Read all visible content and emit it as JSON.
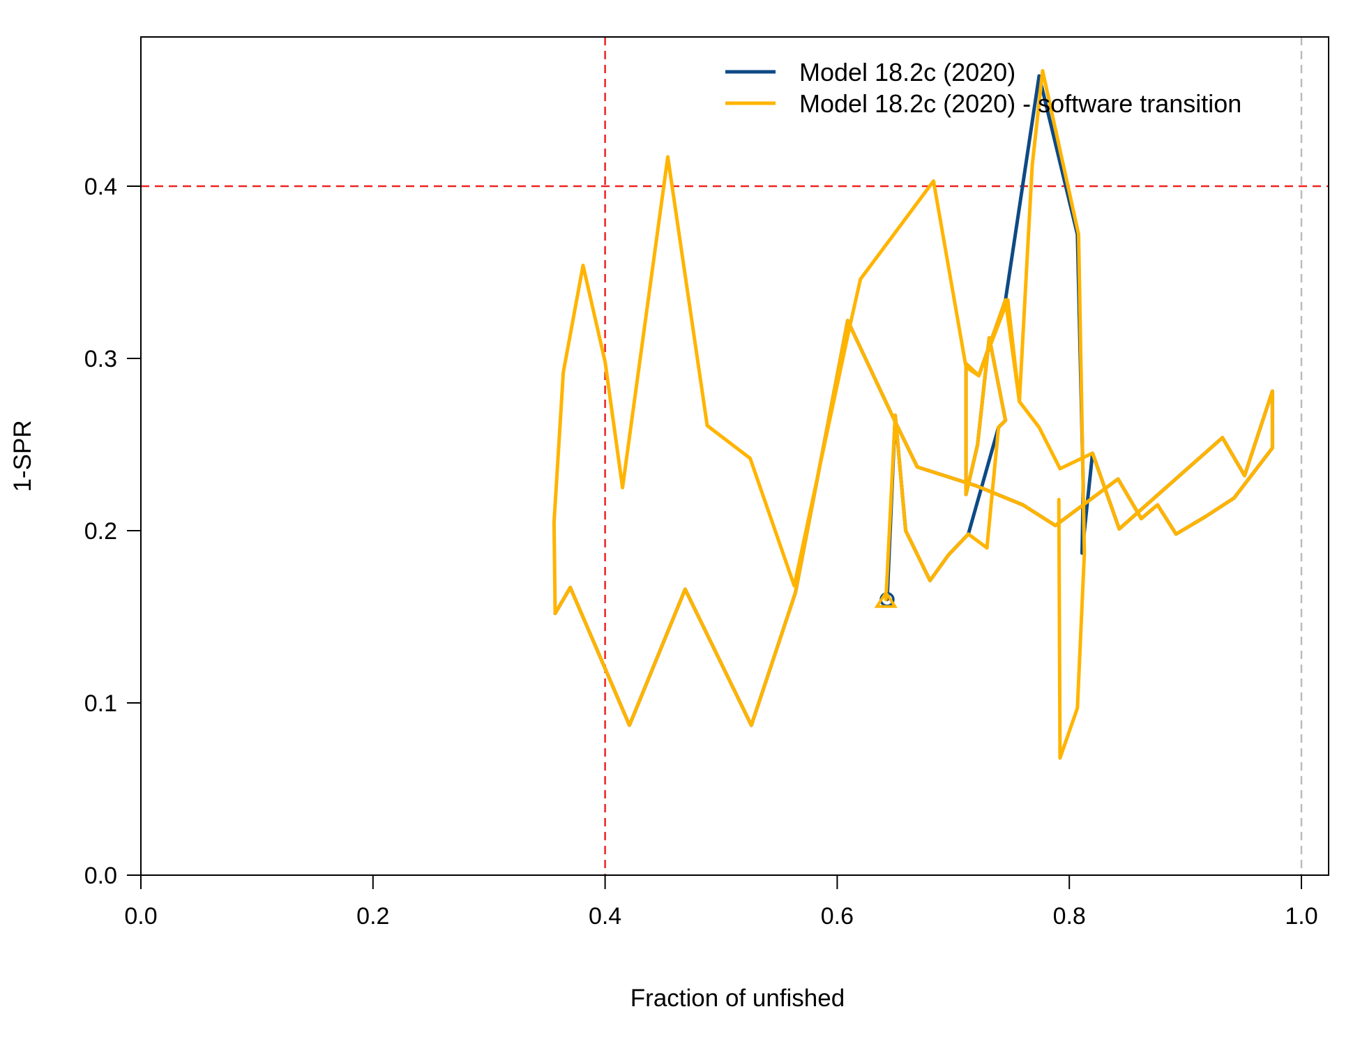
{
  "chart_data": {
    "type": "line",
    "title": "",
    "xlabel": "Fraction of unfished",
    "ylabel": "1-SPR",
    "xlim": [
      0,
      1
    ],
    "ylim": [
      0,
      0.48
    ],
    "x_ticks": [
      "0.0",
      "0.2",
      "0.4",
      "0.6",
      "0.8",
      "1.0"
    ],
    "y_ticks": [
      "0.0",
      "0.1",
      "0.2",
      "0.3",
      "0.4"
    ],
    "grid": false,
    "legend_position": "top-right",
    "reference_lines": {
      "vertical": [
        {
          "x": 0.4,
          "color": "#ee2222",
          "style": "dashed"
        },
        {
          "x": 1.0,
          "color": "#bbbbbb",
          "style": "dashed"
        }
      ],
      "horizontal": [
        {
          "y": 0.4,
          "color": "#ee2222",
          "style": "dashed"
        }
      ]
    },
    "series": [
      {
        "name": "Model 18.2c (2020)",
        "color": "#0e4a84",
        "end_marker": "circle",
        "points": [
          [
            0.357,
            0.152
          ],
          [
            0.37,
            0.167
          ],
          [
            0.4,
            0.12
          ],
          [
            0.421,
            0.087
          ],
          [
            0.469,
            0.166
          ],
          [
            0.526,
            0.087
          ],
          [
            0.564,
            0.164
          ],
          [
            0.609,
            0.322
          ],
          [
            0.648,
            0.266
          ],
          [
            0.669,
            0.237
          ],
          [
            0.72,
            0.226
          ],
          [
            0.76,
            0.215
          ],
          [
            0.788,
            0.203
          ],
          [
            0.842,
            0.23
          ],
          [
            0.862,
            0.207
          ],
          [
            0.876,
            0.215
          ],
          [
            0.892,
            0.198
          ],
          [
            0.917,
            0.208
          ],
          [
            0.942,
            0.219
          ],
          [
            0.975,
            0.248
          ],
          [
            0.975,
            0.281
          ],
          [
            0.951,
            0.232
          ],
          [
            0.932,
            0.254
          ],
          [
            0.843,
            0.201
          ],
          [
            0.82,
            0.245
          ],
          [
            0.811,
            0.187
          ],
          [
            0.812,
            0.226
          ],
          [
            0.807,
            0.372
          ],
          [
            0.774,
            0.464
          ],
          [
            0.745,
            0.334
          ],
          [
            0.722,
            0.29
          ],
          [
            0.711,
            0.297
          ],
          [
            0.711,
            0.221
          ],
          [
            0.721,
            0.25
          ],
          [
            0.731,
            0.312
          ],
          [
            0.745,
            0.264
          ],
          [
            0.739,
            0.26
          ],
          [
            0.713,
            0.198
          ],
          [
            0.696,
            0.186
          ],
          [
            0.68,
            0.171
          ],
          [
            0.659,
            0.2
          ],
          [
            0.65,
            0.267
          ],
          [
            0.643,
            0.16
          ]
        ]
      },
      {
        "name": "Model 18.2c (2020) - software transition",
        "color": "#ffb400",
        "end_marker": "triangle",
        "points": [
          [
            0.356,
            0.205
          ],
          [
            0.357,
            0.152
          ],
          [
            0.37,
            0.167
          ],
          [
            0.4,
            0.12
          ],
          [
            0.421,
            0.087
          ],
          [
            0.469,
            0.166
          ],
          [
            0.526,
            0.087
          ],
          [
            0.564,
            0.164
          ],
          [
            0.609,
            0.322
          ],
          [
            0.648,
            0.266
          ],
          [
            0.669,
            0.237
          ],
          [
            0.72,
            0.226
          ],
          [
            0.76,
            0.215
          ],
          [
            0.788,
            0.203
          ],
          [
            0.842,
            0.23
          ],
          [
            0.862,
            0.207
          ],
          [
            0.876,
            0.215
          ],
          [
            0.892,
            0.198
          ],
          [
            0.917,
            0.208
          ],
          [
            0.942,
            0.219
          ],
          [
            0.975,
            0.248
          ],
          [
            0.975,
            0.281
          ],
          [
            0.951,
            0.232
          ],
          [
            0.932,
            0.254
          ],
          [
            0.843,
            0.201
          ],
          [
            0.82,
            0.245
          ],
          [
            0.792,
            0.236
          ],
          [
            0.774,
            0.26
          ],
          [
            0.757,
            0.275
          ],
          [
            0.747,
            0.334
          ],
          [
            0.722,
            0.29
          ],
          [
            0.711,
            0.297
          ],
          [
            0.711,
            0.221
          ],
          [
            0.721,
            0.25
          ],
          [
            0.731,
            0.312
          ],
          [
            0.745,
            0.264
          ],
          [
            0.739,
            0.26
          ],
          [
            0.729,
            0.19
          ],
          [
            0.713,
            0.198
          ],
          [
            0.696,
            0.186
          ],
          [
            0.68,
            0.171
          ],
          [
            0.659,
            0.2
          ],
          [
            0.65,
            0.267
          ],
          [
            0.642,
            0.16
          ]
        ]
      },
      {
        "name": "",
        "color": "#ffb400",
        "points": [
          [
            0.356,
            0.205
          ],
          [
            0.364,
            0.292
          ],
          [
            0.381,
            0.354
          ],
          [
            0.4,
            0.298
          ],
          [
            0.415,
            0.225
          ],
          [
            0.454,
            0.417
          ],
          [
            0.488,
            0.261
          ],
          [
            0.525,
            0.242
          ],
          [
            0.563,
            0.168
          ],
          [
            0.61,
            0.316
          ],
          [
            0.62,
            0.346
          ],
          [
            0.683,
            0.403
          ],
          [
            0.711,
            0.295
          ],
          [
            0.722,
            0.29
          ],
          [
            0.745,
            0.334
          ],
          [
            0.757,
            0.275
          ],
          [
            0.768,
            0.412
          ],
          [
            0.777,
            0.467
          ],
          [
            0.808,
            0.372
          ],
          [
            0.813,
            0.187
          ],
          [
            0.807,
            0.097
          ],
          [
            0.792,
            0.068
          ],
          [
            0.791,
            0.218
          ]
        ]
      }
    ]
  }
}
